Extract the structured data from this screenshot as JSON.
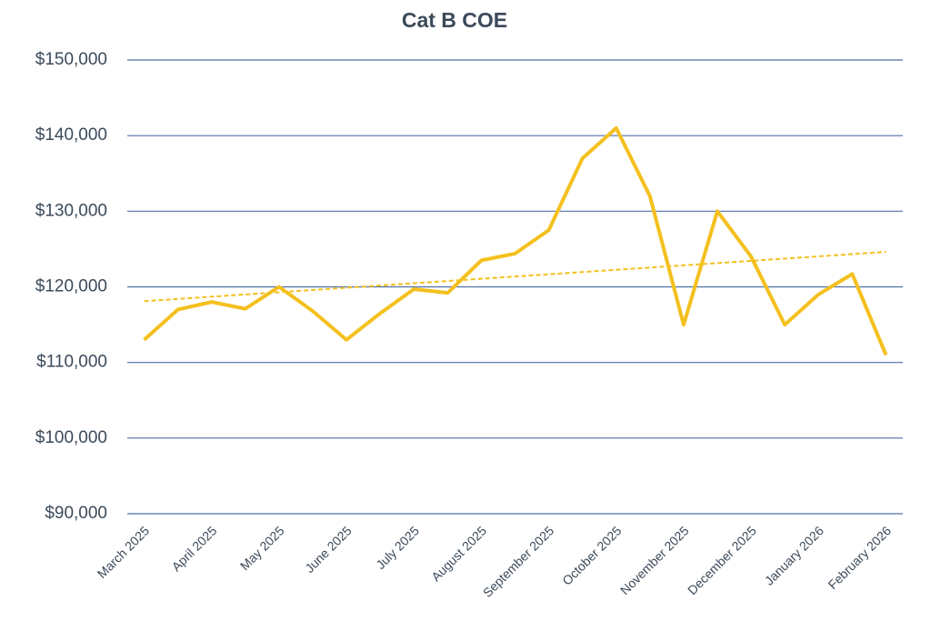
{
  "chart_data": {
    "type": "line",
    "title": "Cat B COE",
    "categories": [
      "March 2025",
      null,
      "April 2025",
      null,
      "May 2025",
      null,
      "June 2025",
      null,
      "July 2025",
      null,
      "August 2025",
      null,
      "September 2025",
      null,
      "October 2025",
      null,
      "November 2025",
      null,
      "December 2025",
      null,
      "January 2026",
      null,
      "February 2026"
    ],
    "values": [
      113000,
      117000,
      118000,
      117100,
      120000,
      116800,
      113000,
      116500,
      119700,
      119200,
      123500,
      124400,
      127500,
      137000,
      141000,
      132000,
      115000,
      130000,
      124000,
      115000,
      119000,
      121700,
      111000
    ],
    "color": "#f4c01e",
    "trendline": {
      "type": "linear",
      "color": "#f4c01e",
      "dashed": true
    },
    "ylim": [
      90000,
      150000
    ],
    "yticks": [
      {
        "value": 90000,
        "label": "$90,000"
      },
      {
        "value": 100000,
        "label": "$100,000"
      },
      {
        "value": 110000,
        "label": "$110,000"
      },
      {
        "value": 120000,
        "label": "$120,000"
      },
      {
        "value": 130000,
        "label": "$130,000"
      },
      {
        "value": 140000,
        "label": "$140,000"
      },
      {
        "value": 150000,
        "label": "$150,000"
      }
    ],
    "grid": true
  }
}
